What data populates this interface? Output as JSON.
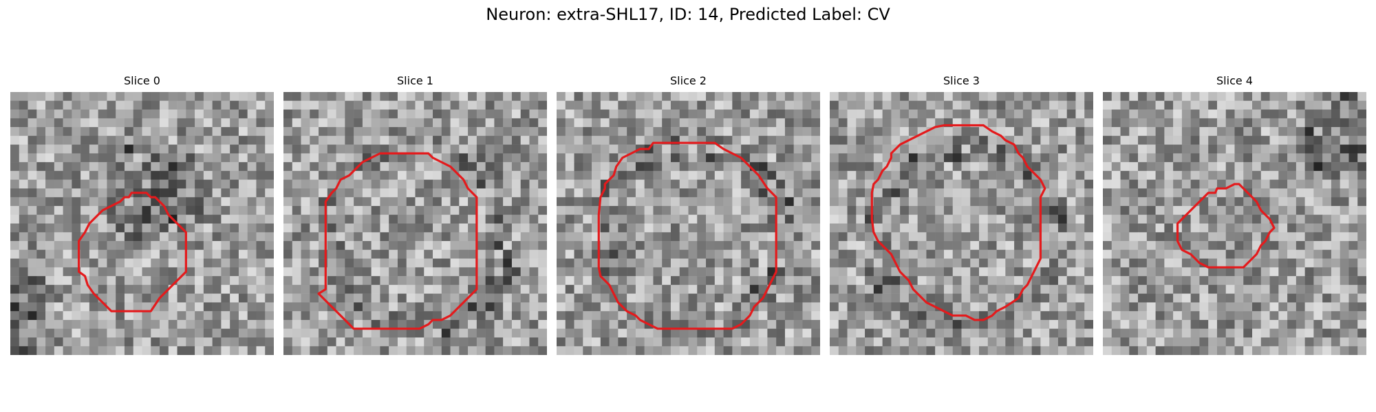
{
  "figure": {
    "title": "Neuron: extra-SHL17, ID: 14, Predicted Label: CV"
  },
  "panels": [
    {
      "title": "Slice 0",
      "seed": 11,
      "dark": "blob"
    },
    {
      "title": "Slice 1",
      "seed": 23,
      "dark": "ring"
    },
    {
      "title": "Slice 2",
      "seed": 37,
      "dark": "ring"
    },
    {
      "title": "Slice 3",
      "seed": 41,
      "dark": "ring"
    },
    {
      "title": "Slice 4",
      "seed": 53,
      "dark": "corner"
    }
  ],
  "contour_color": "#e41a1c",
  "grid_size": 30
}
